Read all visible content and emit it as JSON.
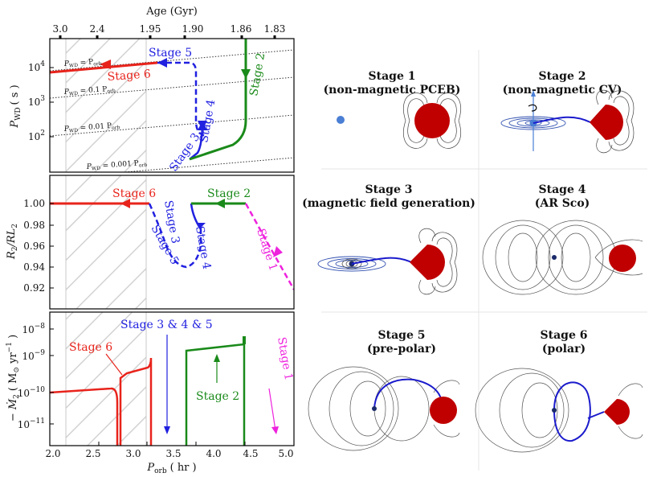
{
  "top_axis": {
    "label": "Age (Gyr)",
    "ticks": [
      "3.0",
      "2.4",
      "1.95",
      "1.90",
      "1.86",
      "1.83"
    ]
  },
  "panel1": {
    "ylabel_main": "P",
    "ylabel_sub": "WD",
    "ylabel_unit": "( s )",
    "yticks": [
      {
        "base": "10",
        "exp": "4"
      },
      {
        "base": "10",
        "exp": "3"
      },
      {
        "base": "10",
        "exp": "2"
      }
    ],
    "ref_lines": [
      "P_WD = P_orb",
      "P_WD = 0.1 P_orb",
      "P_WD = 0.01 P_orb",
      "P_WD = 0.001 P_orb"
    ],
    "ref_labels": [
      {
        "main": "P",
        "sub": "WD",
        "rest": " = P",
        "sub2": "orb"
      },
      {
        "main": "P",
        "sub": "WD",
        "rest": " = 0.1 P",
        "sub2": "orb"
      },
      {
        "main": "P",
        "sub": "WD",
        "rest": " = 0.01 P",
        "sub2": "orb"
      },
      {
        "main": "P",
        "sub": "WD",
        "rest": " = 0.001 P",
        "sub2": "orb"
      }
    ],
    "stage_labels": [
      "Stage 5",
      "Stage 6",
      "Stage 2",
      "Stage 4",
      "Stage 3"
    ]
  },
  "panel2": {
    "ylabel": "R2/RL2",
    "ylabel_a": "R",
    "ylabel_b": "2",
    "ylabel_c": "/RL",
    "ylabel_d": "2",
    "yticks": [
      "1.00",
      "0.98",
      "0.96",
      "0.94",
      "0.92"
    ],
    "stage_labels": [
      "Stage 6",
      "Stage 3",
      "Stage 2",
      "Stage 4",
      "Stage 5",
      "Stage 1"
    ]
  },
  "panel3": {
    "ylabel": "− Ṁ2 ( M⊙ yr−1 )",
    "ylabel_a": "− Ṁ",
    "ylabel_b": "2",
    "ylabel_c": "( M",
    "ylabel_d": "⊙",
    "ylabel_e": " yr",
    "ylabel_f": "−1",
    "ylabel_g": " )",
    "yticks": [
      {
        "base": "10",
        "exp": "−8"
      },
      {
        "base": "10",
        "exp": "−9"
      },
      {
        "base": "10",
        "exp": "−10"
      },
      {
        "base": "10",
        "exp": "−11"
      }
    ],
    "stage_labels": [
      "Stage 3 & 4 & 5",
      "Stage 6",
      "Stage 2",
      "Stage 1"
    ]
  },
  "x_axis": {
    "label_main": "P",
    "label_sub": "orb",
    "label_unit": "( hr )",
    "ticks": [
      "2.0",
      "2.5",
      "3.0",
      "3.5",
      "4.0",
      "4.5",
      "5.0"
    ]
  },
  "stages": [
    {
      "title": "Stage 1",
      "subtitle": "(non-magnetic PCEB)"
    },
    {
      "title": "Stage 2",
      "subtitle": "(non-magnetic CV)"
    },
    {
      "title": "Stage 3",
      "subtitle": "(magnetic field generation)"
    },
    {
      "title": "Stage 4",
      "subtitle": "(AR Sco)"
    },
    {
      "title": "Stage 5",
      "subtitle": "(pre-polar)"
    },
    {
      "title": "Stage 6",
      "subtitle": "(polar)"
    }
  ],
  "colors": {
    "red": "#e8231b",
    "blue": "#2020e0",
    "green": "#1a8a1a",
    "magenta": "#ee22dd",
    "donor": "#c00000",
    "wd": "#4a7fd4",
    "field_line": "#555555",
    "hatch": "#d0d0d0"
  }
}
